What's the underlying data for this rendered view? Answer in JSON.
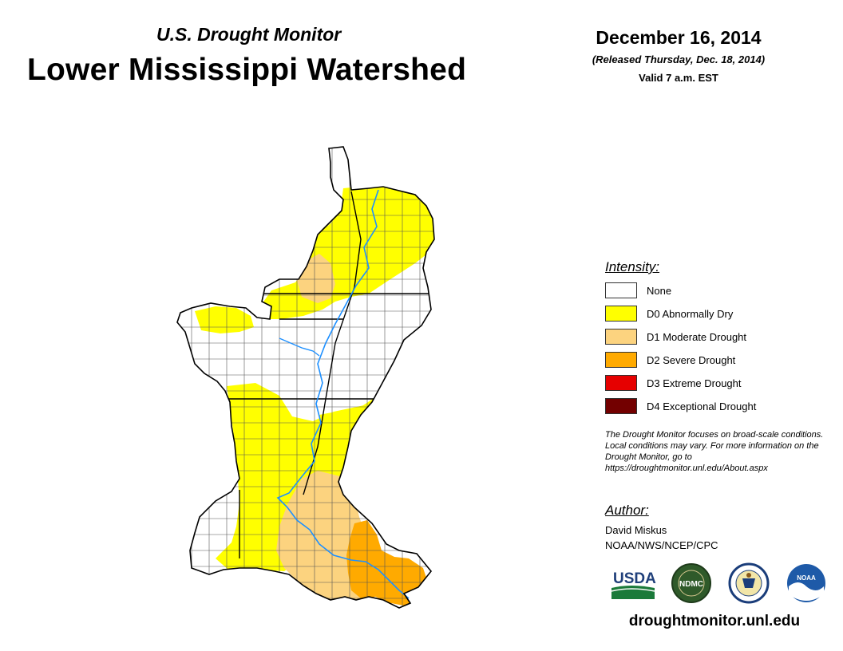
{
  "header": {
    "subtitle": "U.S. Drought Monitor",
    "title": "Lower Mississippi Watershed",
    "date": "December 16, 2014",
    "released": "(Released Thursday, Dec. 18, 2014)",
    "valid": "Valid 7 a.m. EST"
  },
  "legend": {
    "heading": "Intensity:",
    "items": [
      {
        "label": "None",
        "color": "#ffffff"
      },
      {
        "label": "D0 Abnormally Dry",
        "color": "#ffff00"
      },
      {
        "label": "D1 Moderate Drought",
        "color": "#fcd37f"
      },
      {
        "label": "D2 Severe Drought",
        "color": "#ffaa00"
      },
      {
        "label": "D3 Extreme Drought",
        "color": "#e60000"
      },
      {
        "label": "D4 Exceptional Drought",
        "color": "#730000"
      }
    ]
  },
  "note": "The Drought Monitor focuses on broad-scale conditions. Local conditions may vary. For more information on the Drought Monitor, go to https://droughtmonitor.unl.edu/About.aspx",
  "author": {
    "heading": "Author:",
    "name": "David Miskus",
    "org": "NOAA/NWS/NCEP/CPC"
  },
  "logos": [
    {
      "name": "usda-logo",
      "text": "USDA"
    },
    {
      "name": "ndmc-logo",
      "text": "NDMC"
    },
    {
      "name": "doc-seal-logo",
      "text": ""
    },
    {
      "name": "noaa-logo",
      "text": "NOAA"
    }
  ],
  "website": "droughtmonitor.unl.edu",
  "colors": {
    "river": "#1e90ff",
    "border": "#000000",
    "county": "#555555"
  }
}
